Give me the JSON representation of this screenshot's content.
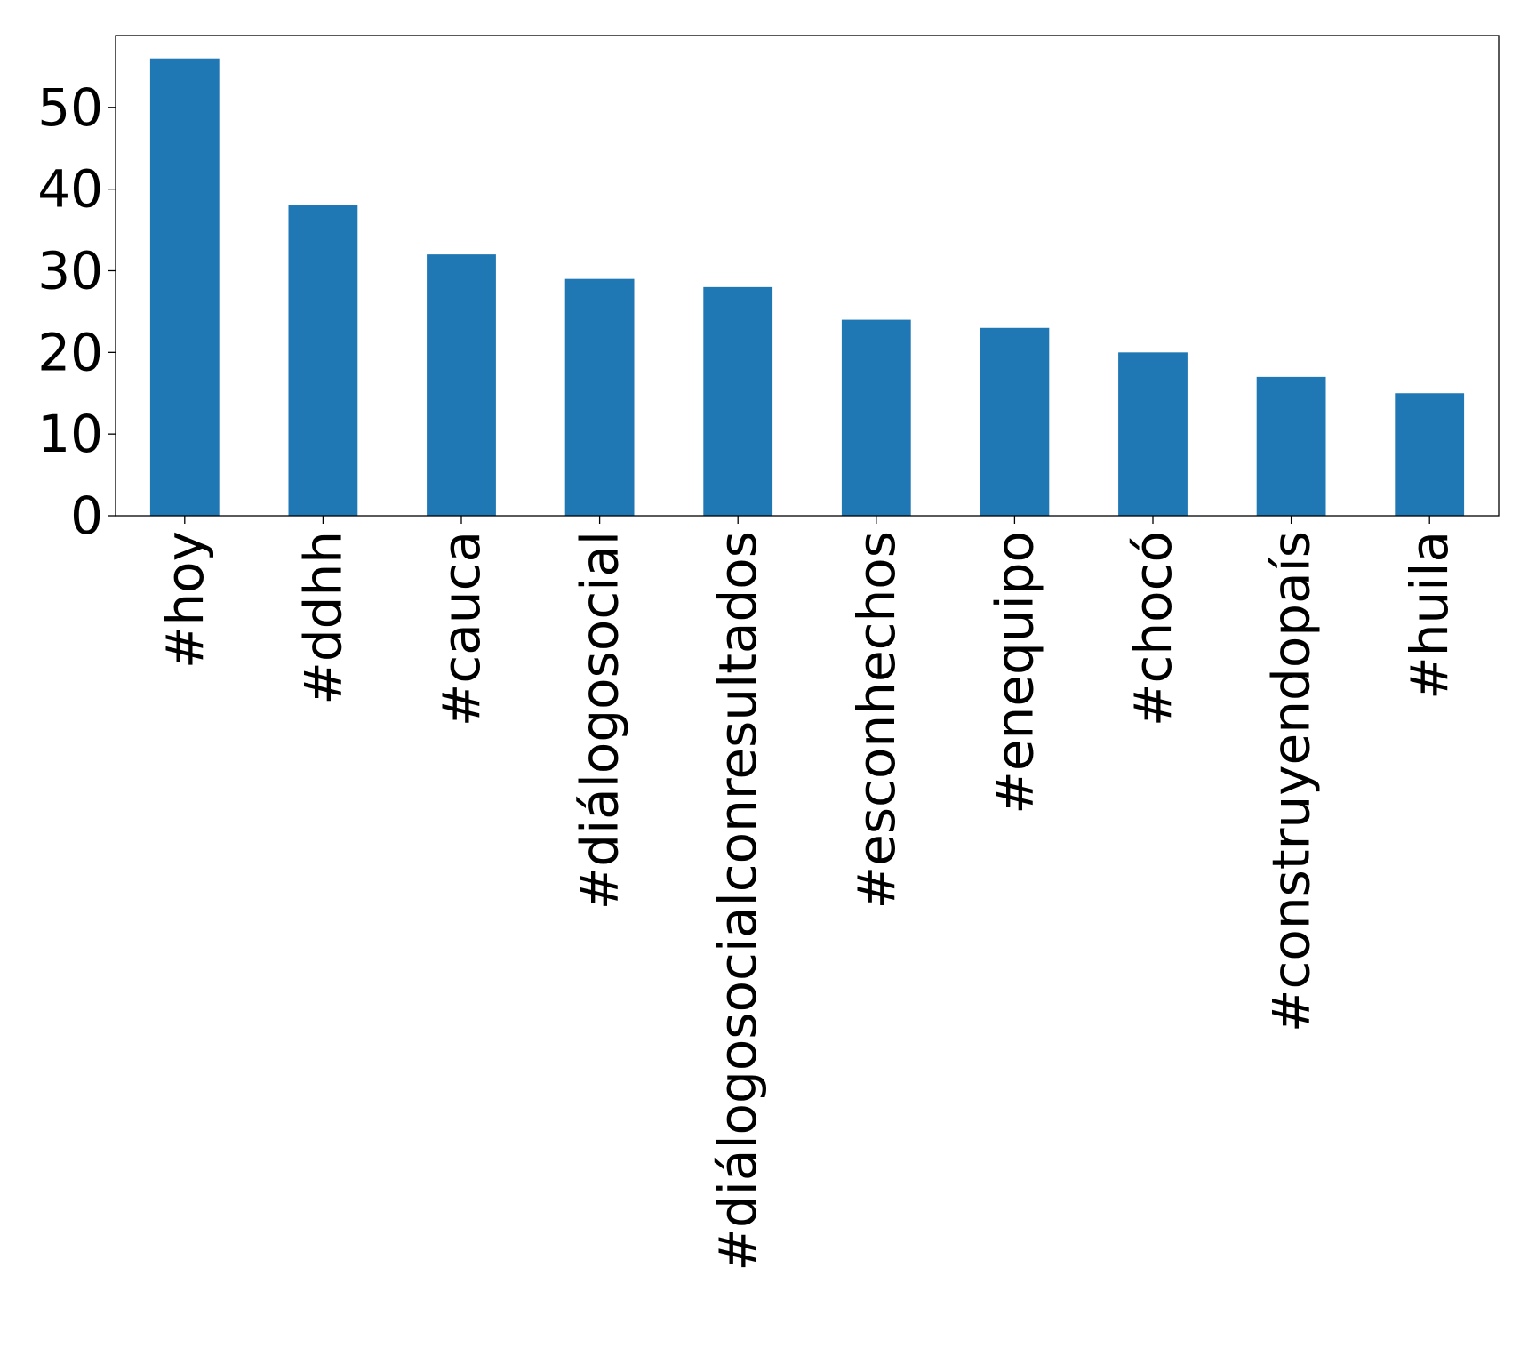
{
  "chart_data": {
    "type": "bar",
    "categories": [
      "#hoy",
      "#ddhh",
      "#cauca",
      "#diálogosocial",
      "#diálogosocialconresultados",
      "#esconhechos",
      "#enequipo",
      "#chocó",
      "#construyendopaís",
      "#huila"
    ],
    "values": [
      56,
      38,
      32,
      29,
      28,
      24,
      23,
      20,
      17,
      15
    ],
    "title": "",
    "xlabel": "",
    "ylabel": "",
    "ylim": [
      0,
      58.8
    ],
    "yticks": [
      0,
      10,
      20,
      30,
      40,
      50
    ],
    "grid": false,
    "legend": "none",
    "bar_color": "#1f77b4"
  }
}
